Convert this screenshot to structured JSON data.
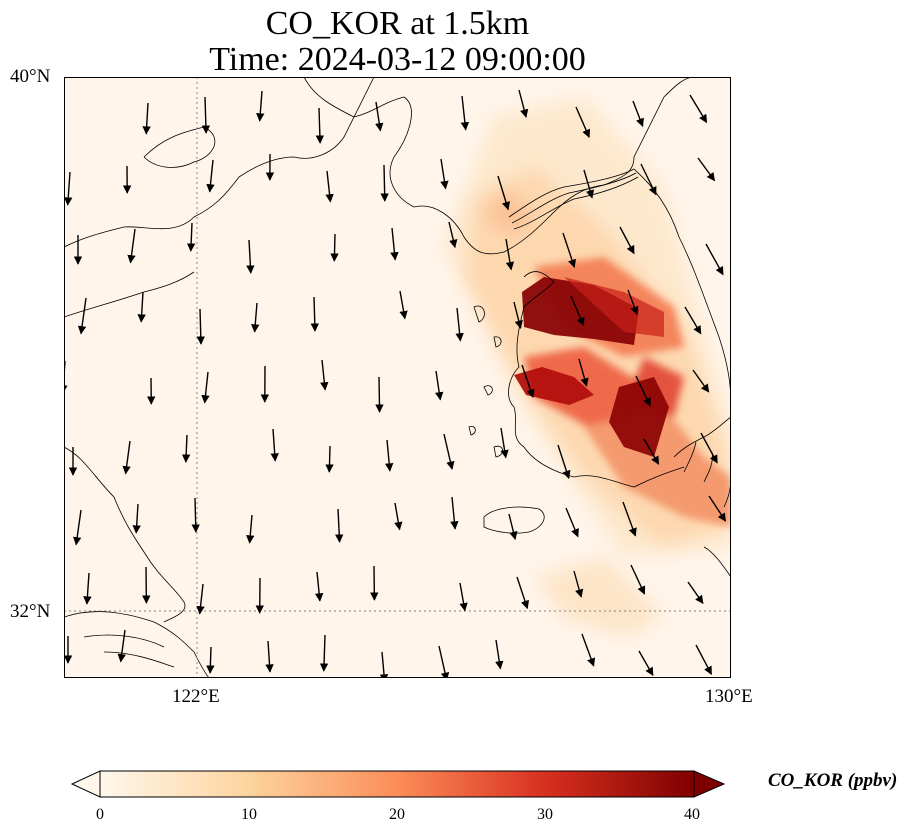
{
  "title": {
    "line1": "CO_KOR at 1.5km",
    "line2": "Time: 2024-03-12 09:00:00"
  },
  "axes": {
    "lat_labels": [
      "40°N",
      "32°N"
    ],
    "lon_labels": [
      "122°E",
      "130°E"
    ],
    "lon_range": [
      120,
      130
    ],
    "lat_range": [
      31,
      40
    ]
  },
  "colorbar": {
    "label": "CO_KOR (ppbv)",
    "ticks": [
      "0",
      "10",
      "20",
      "30",
      "40"
    ],
    "range": [
      0,
      40
    ],
    "colormap": "OrRd",
    "colors": [
      "#fff7ec",
      "#fdd49e",
      "#fc8d59",
      "#d7301f",
      "#7f0000"
    ]
  },
  "map": {
    "variable": "CO_KOR",
    "level": "1.5km",
    "gridlines": "dotted gray at 122°E and 32°N",
    "features": [
      "coastlines",
      "wind-vectors",
      "concentration-field"
    ]
  }
}
